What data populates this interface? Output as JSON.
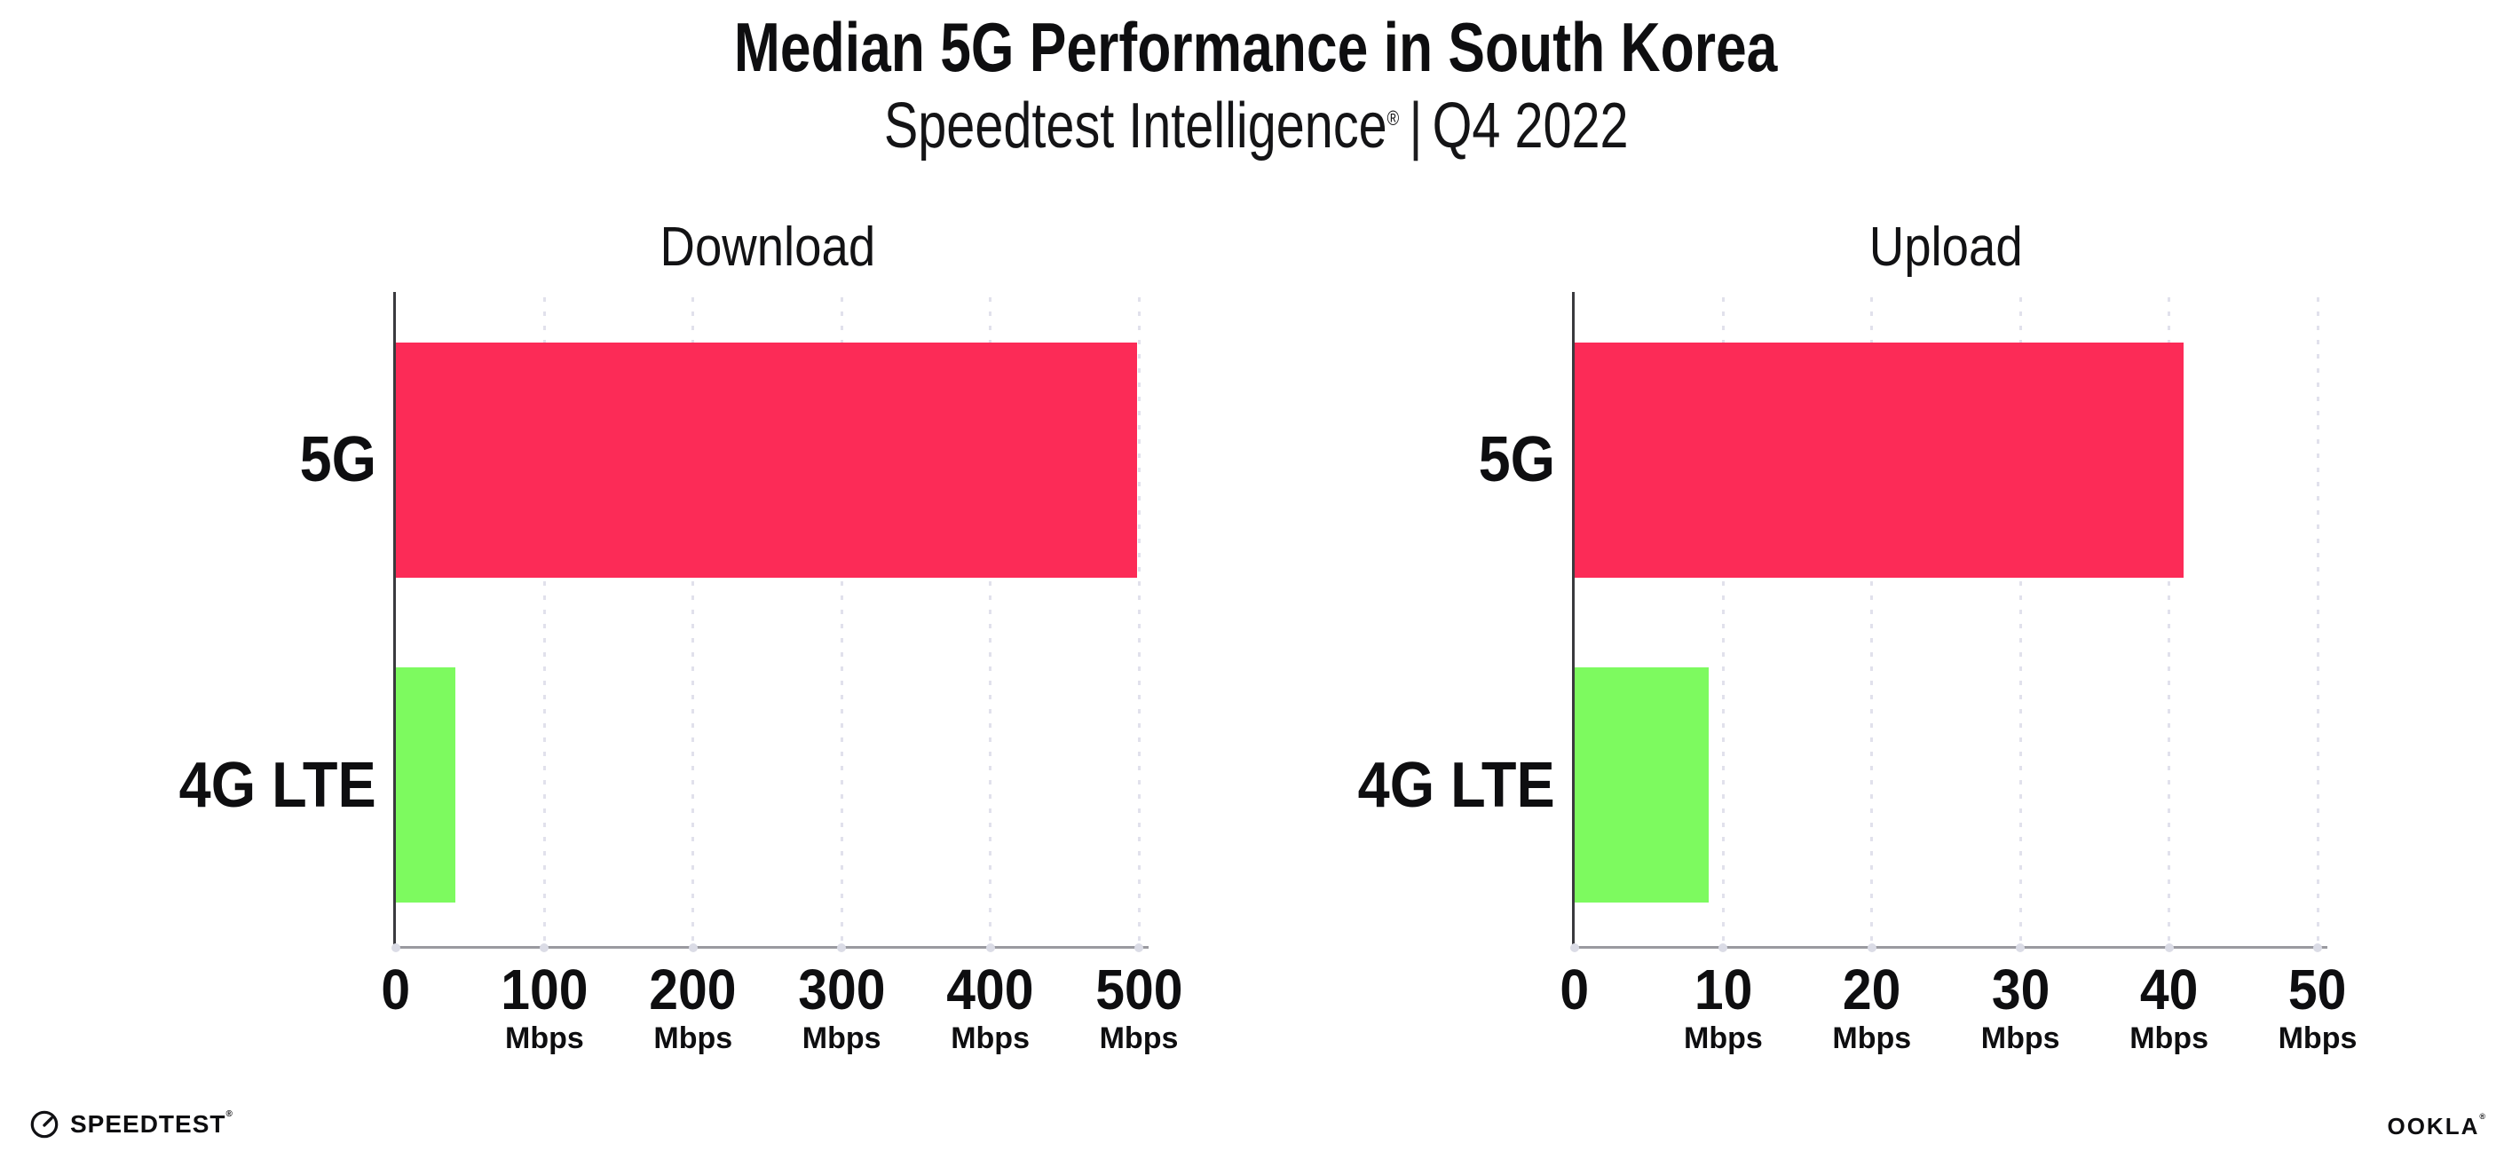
{
  "header": {
    "title": "Median 5G Performance in South Korea",
    "subtitle_brand": "Speedtest Intelligence",
    "subtitle_reg": "®",
    "subtitle_divider": "|",
    "subtitle_period": "Q4 2022"
  },
  "chart_data": [
    {
      "type": "bar",
      "orientation": "horizontal",
      "title": "Download",
      "categories": [
        "5G",
        "4G LTE"
      ],
      "values": [
        499,
        40
      ],
      "unit": "Mbps",
      "xlim": [
        0,
        500
      ],
      "xticks": [
        0,
        100,
        200,
        300,
        400,
        500
      ],
      "bar_colors": [
        "#FC2B57",
        "#7DFA5F"
      ],
      "grid": "dotted vertical gridlines at each tick",
      "legend": "none"
    },
    {
      "type": "bar",
      "orientation": "horizontal",
      "title": "Upload",
      "categories": [
        "5G",
        "4G LTE"
      ],
      "values": [
        41,
        9
      ],
      "unit": "Mbps",
      "xlim": [
        0,
        50
      ],
      "xticks": [
        0,
        10,
        20,
        30,
        40,
        50
      ],
      "bar_colors": [
        "#FC2B57",
        "#7DFA5F"
      ],
      "grid": "dotted vertical gridlines at each tick",
      "legend": "none"
    }
  ],
  "footer": {
    "speedtest_label": "SPEEDTEST",
    "speedtest_reg": "®",
    "speedtest_icon": "gauge-icon",
    "ookla_label": "OOKLA",
    "ookla_reg": "®"
  },
  "colors": {
    "bar_5g": "#FC2B57",
    "bar_4g_lte": "#7DFA5F",
    "gridline": "#E1E1EC",
    "y_spine": "#3A3A3E",
    "x_axis": "#9A9AA0",
    "tick_dot": "#DBDCE6",
    "text": "#0E0E10",
    "background": "#FFFFFF"
  }
}
